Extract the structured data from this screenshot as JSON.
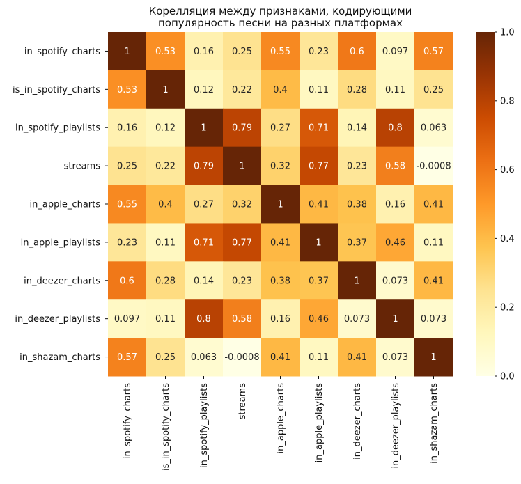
{
  "chart_data": {
    "type": "heatmap",
    "title": "Корелляция между признаками, кодирующими\nпопулярность песни на разных платформах",
    "title_lines": [
      "Корелляция между признаками, кодирующими",
      "популярность песни на разных платформах"
    ],
    "row_labels": [
      "in_spotify_charts",
      "is_in_spotify_charts",
      "in_spotify_playlists",
      "streams",
      "in_apple_charts",
      "in_apple_playlists",
      "in_deezer_charts",
      "in_deezer_playlists",
      "in_shazam_charts"
    ],
    "col_labels": [
      "in_spotify_charts",
      "is_in_spotify_charts",
      "in_spotify_playlists",
      "streams",
      "in_apple_charts",
      "in_apple_playlists",
      "in_deezer_charts",
      "in_deezer_playlists",
      "in_shazam_charts"
    ],
    "values": [
      [
        1,
        0.53,
        0.16,
        0.25,
        0.55,
        0.23,
        0.6,
        0.097,
        0.57
      ],
      [
        0.53,
        1,
        0.12,
        0.22,
        0.4,
        0.11,
        0.28,
        0.11,
        0.25
      ],
      [
        0.16,
        0.12,
        1,
        0.79,
        0.27,
        0.71,
        0.14,
        0.8,
        0.063
      ],
      [
        0.25,
        0.22,
        0.79,
        1,
        0.32,
        0.77,
        0.23,
        0.58,
        -0.0008
      ],
      [
        0.55,
        0.4,
        0.27,
        0.32,
        1,
        0.41,
        0.38,
        0.16,
        0.41
      ],
      [
        0.23,
        0.11,
        0.71,
        0.77,
        0.41,
        1,
        0.37,
        0.46,
        0.11
      ],
      [
        0.6,
        0.28,
        0.14,
        0.23,
        0.38,
        0.37,
        1,
        0.073,
        0.41
      ],
      [
        0.097,
        0.11,
        0.8,
        0.58,
        0.16,
        0.46,
        0.073,
        1,
        0.073
      ],
      [
        0.57,
        0.25,
        0.063,
        -0.0008,
        0.41,
        0.11,
        0.41,
        0.073,
        1
      ]
    ],
    "cell_labels": [
      [
        "1",
        "0.53",
        "0.16",
        "0.25",
        "0.55",
        "0.23",
        "0.6",
        "0.097",
        "0.57"
      ],
      [
        "0.53",
        "1",
        "0.12",
        "0.22",
        "0.4",
        "0.11",
        "0.28",
        "0.11",
        "0.25"
      ],
      [
        "0.16",
        "0.12",
        "1",
        "0.79",
        "0.27",
        "0.71",
        "0.14",
        "0.8",
        "0.063"
      ],
      [
        "0.25",
        "0.22",
        "0.79",
        "1",
        "0.32",
        "0.77",
        "0.23",
        "0.58",
        "-0.0008"
      ],
      [
        "0.55",
        "0.4",
        "0.27",
        "0.32",
        "1",
        "0.41",
        "0.38",
        "0.16",
        "0.41"
      ],
      [
        "0.23",
        "0.11",
        "0.71",
        "0.77",
        "0.41",
        "1",
        "0.37",
        "0.46",
        "0.11"
      ],
      [
        "0.6",
        "0.28",
        "0.14",
        "0.23",
        "0.38",
        "0.37",
        "1",
        "0.073",
        "0.41"
      ],
      [
        "0.097",
        "0.11",
        "0.8",
        "0.58",
        "0.16",
        "0.46",
        "0.073",
        "1",
        "0.073"
      ],
      [
        "0.57",
        "0.25",
        "0.063",
        "-0.0008",
        "0.41",
        "0.11",
        "0.41",
        "0.073",
        "1"
      ]
    ],
    "colorbar": {
      "range": [
        0.0,
        1.0
      ],
      "ticks": [
        0.0,
        0.2,
        0.4,
        0.6,
        0.8,
        1.0
      ],
      "tick_labels": [
        "0.0",
        "0.2",
        "0.4",
        "0.6",
        "0.8",
        "1.0"
      ]
    },
    "colormap": "YlOrBr",
    "colormap_stops": [
      "#ffffe5",
      "#fff7bc",
      "#fee391",
      "#fec44f",
      "#fe9929",
      "#ec7014",
      "#cc4c02",
      "#993404",
      "#662506"
    ],
    "grid": false
  }
}
